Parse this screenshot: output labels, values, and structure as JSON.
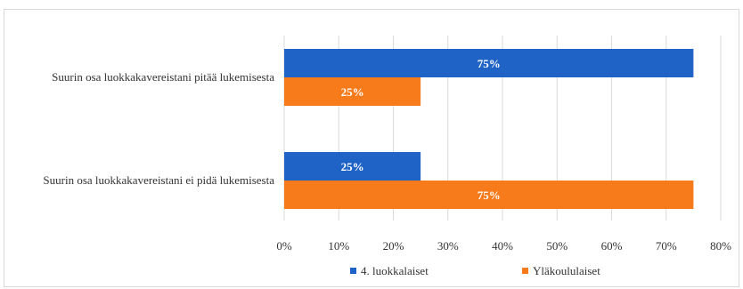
{
  "chart_data": {
    "type": "bar",
    "orientation": "horizontal",
    "categories": [
      "Suurin osa luokkakavereistani pitää lukemisesta",
      "Suurin osa luokkakavereistani ei pidä lukemisesta"
    ],
    "series": [
      {
        "name": "4. luokkalaiset",
        "values": [
          75,
          25
        ],
        "labels": [
          "75%",
          "25%"
        ],
        "color": "#1f63c6"
      },
      {
        "name": "Yläkoululaiset",
        "values": [
          25,
          75
        ],
        "labels": [
          "25%",
          "75%"
        ],
        "color": "#f77b1a"
      }
    ],
    "xlim": [
      0,
      80
    ],
    "xticks": [
      0,
      10,
      20,
      30,
      40,
      50,
      60,
      70,
      80
    ],
    "xtick_labels": [
      "0%",
      "10%",
      "20%",
      "30%",
      "40%",
      "50%",
      "60%",
      "70%",
      "80%"
    ],
    "grid": true,
    "legend_position": "bottom"
  }
}
